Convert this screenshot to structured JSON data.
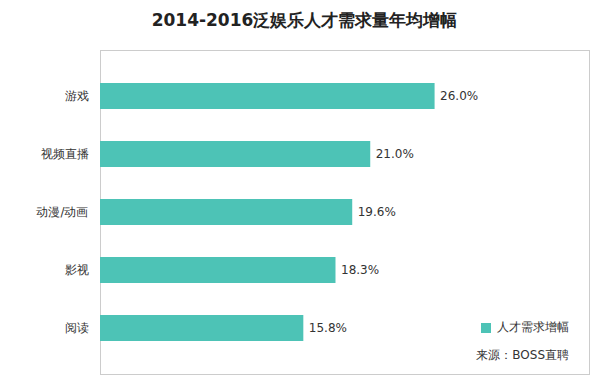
{
  "chart_data": {
    "type": "bar",
    "orientation": "horizontal",
    "title": "2014-2016泛娱乐人才需求量年均增幅",
    "source": "来源：BOSS直聘",
    "categories": [
      "游戏",
      "视频直播",
      "动漫/动画",
      "影视",
      "阅读"
    ],
    "series": [
      {
        "name": "人才需求增幅",
        "color": "#4dc3b6",
        "values": [
          26.0,
          21.0,
          19.6,
          18.3,
          15.8
        ],
        "value_labels": [
          "26.0%",
          "21.0%",
          "19.6%",
          "18.3%",
          "15.8%"
        ]
      }
    ],
    "xlim": [
      0,
      38
    ],
    "xticks": [],
    "data_labels": true,
    "tick_labels": "y",
    "legend": "lower right",
    "grid": false
  }
}
